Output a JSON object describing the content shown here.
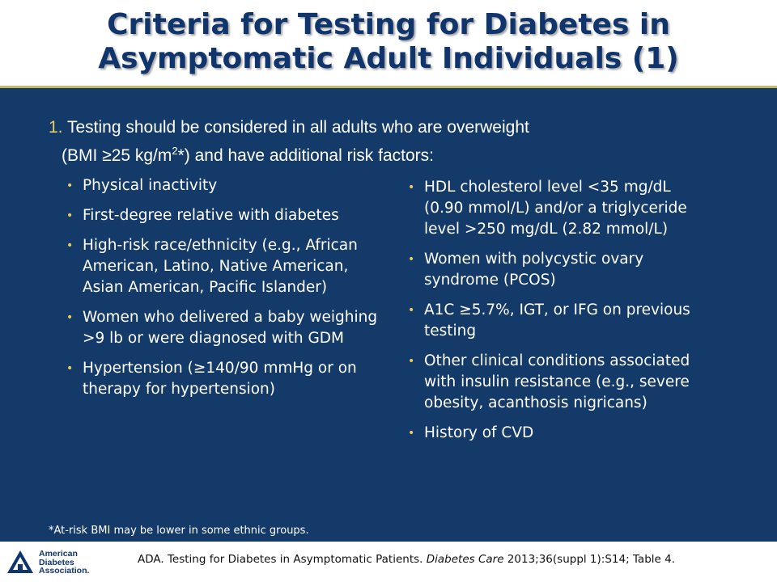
{
  "header": {
    "title_line1": "Criteria for Testing for Diabetes in",
    "title_line2": "Asymptomatic Adult Individuals (1)"
  },
  "intro": {
    "number": "1.",
    "line1_text": "Testing should be considered in all adults who are overweight",
    "line2_pre": "(BMI ≥25 kg/m",
    "superscript": "2",
    "line2_post": "*) and have additional risk factors:"
  },
  "left_items": [
    "Physical inactivity",
    "First-degree relative with diabetes",
    "High-risk race/ethnicity (e.g., African American, Latino, Native American, Asian American, Pacific Islander)",
    "Women who delivered a baby weighing >9 lb or were diagnosed with GDM",
    "Hypertension (≥140/90 mmHg or on therapy for hypertension)"
  ],
  "right_items": [
    "HDL cholesterol level <35 mg/dL (0.90 mmol/L) and/or a triglyceride level >250 mg/dL (2.82 mmol/L)",
    "Women with polycystic ovary syndrome (PCOS)",
    "A1C ≥5.7%, IGT, or IFG on previous testing",
    "Other clinical conditions associated with insulin resistance (e.g., severe obesity, acanthosis nigricans)",
    "History of CVD"
  ],
  "bullet_glyph": "•",
  "footnote": "*At-risk BMI may be lower in some ethnic groups.",
  "footer": {
    "logo_lines": [
      "American",
      "Diabetes",
      "Association."
    ],
    "logo_icon": "ada-triangle-logo-icon",
    "citation_pre": "ADA. Testing for Diabetes in Asymptomatic Patients. ",
    "citation_journal": "Diabetes Care",
    "citation_post": " 2013;36(suppl 1):S14; Table 4."
  },
  "colors": {
    "title": "#10356d",
    "body_bg": "#143a69",
    "accent": "#e8cf63",
    "rule": "#c8b86a"
  }
}
